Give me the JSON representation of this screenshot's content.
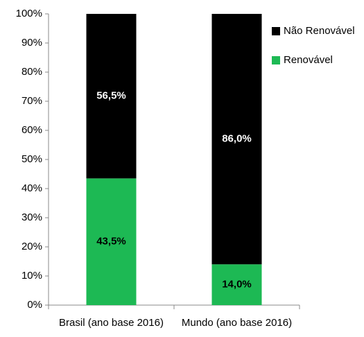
{
  "chart_data": {
    "type": "stacked_bar",
    "categories": [
      "Brasil (ano base 2016)",
      "Mundo (ano base 2016)"
    ],
    "series": [
      {
        "name": "Renovável",
        "color": "#1db954",
        "label_color": "#000000",
        "values": [
          43.5,
          14.0
        ],
        "value_labels": [
          "43,5%",
          "14,0%"
        ]
      },
      {
        "name": "Não Renovável",
        "color": "#000000",
        "label_color": "#ffffff",
        "values": [
          56.5,
          86.0
        ],
        "value_labels": [
          "56,5%",
          "86,0%"
        ]
      }
    ],
    "ylim": [
      0,
      100
    ],
    "yticks": [
      {
        "value": 0,
        "label": "0%"
      },
      {
        "value": 10,
        "label": "10%"
      },
      {
        "value": 20,
        "label": "20%"
      },
      {
        "value": 30,
        "label": "30%"
      },
      {
        "value": 40,
        "label": "40%"
      },
      {
        "value": 50,
        "label": "50%"
      },
      {
        "value": 60,
        "label": "60%"
      },
      {
        "value": 70,
        "label": "70%"
      },
      {
        "value": 80,
        "label": "80%"
      },
      {
        "value": 90,
        "label": "90%"
      },
      {
        "value": 100,
        "label": "100%"
      }
    ],
    "legend": "top-right"
  }
}
